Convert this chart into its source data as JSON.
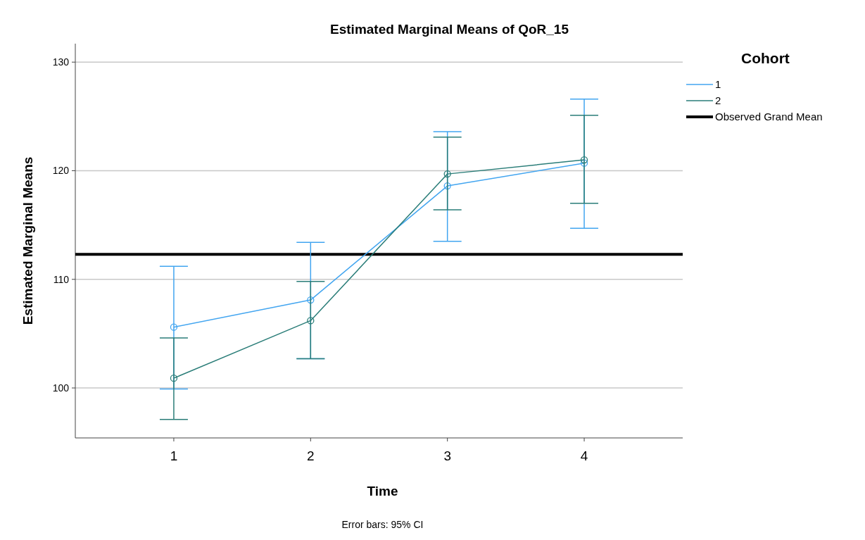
{
  "chart_data": {
    "type": "line",
    "title": "Estimated Marginal Means of QoR_15",
    "xlabel": "Time",
    "ylabel": "Estimated Marginal Means",
    "legend_title": "Cohort",
    "categories": [
      "1",
      "2",
      "3",
      "4"
    ],
    "series": [
      {
        "name": "1",
        "color": "#42a5f0",
        "values": [
          105.6,
          108.1,
          118.6,
          120.7
        ],
        "errors": [
          [
            99.9,
            111.2
          ],
          [
            102.7,
            113.4
          ],
          [
            113.5,
            123.6
          ],
          [
            114.7,
            126.6
          ]
        ]
      },
      {
        "name": "2",
        "color": "#2a7d78",
        "values": [
          100.9,
          106.2,
          119.7,
          121.0
        ],
        "errors": [
          [
            97.1,
            104.6
          ],
          [
            102.7,
            109.8
          ],
          [
            116.4,
            123.1
          ],
          [
            117.0,
            125.1
          ]
        ]
      }
    ],
    "ylim": [
      95.4,
      131.7
    ],
    "yticks": [
      100,
      110,
      120,
      130
    ],
    "grid": "y",
    "legend": "right",
    "marker": "circle",
    "line_style": "solid",
    "ref_lines": [
      {
        "axis": "y",
        "value": 112.3,
        "label": "Observed Grand Mean",
        "color": "#000000"
      }
    ],
    "annotations": [
      "Error bars: 95% CI"
    ]
  }
}
